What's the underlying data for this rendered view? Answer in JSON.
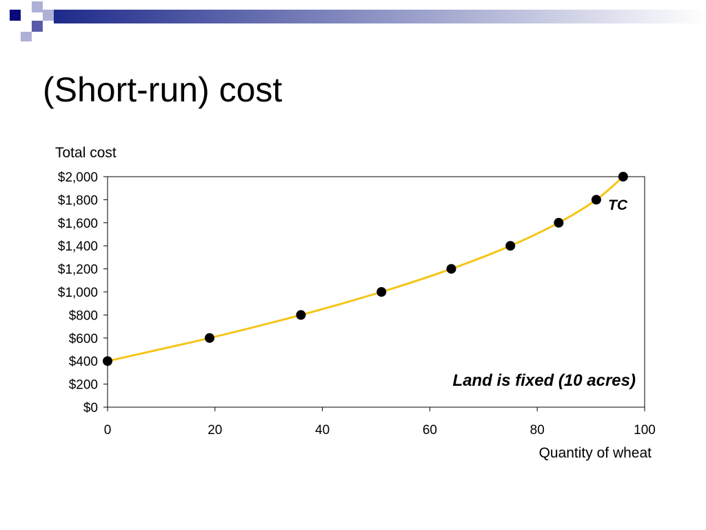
{
  "slide": {
    "title": "(Short-run) cost"
  },
  "colors": {
    "curve": "#f5c518",
    "header_square_dark": "#0a0a7a",
    "header_square_mid": "#5a5aa8",
    "header_square_light": "#aeb0d6",
    "header_bar_start": "#1e2a8a",
    "header_bar_end": "#ffffff"
  },
  "chart_data": {
    "type": "line",
    "ylabel": "Total cost",
    "xlabel": "Quantity of wheat",
    "xlim": [
      0,
      100
    ],
    "ylim": [
      0,
      2000
    ],
    "x_ticks": [
      "0",
      "20",
      "40",
      "60",
      "80",
      "100"
    ],
    "y_ticks": [
      "$0",
      "$200",
      "$400",
      "$600",
      "$800",
      "$1,000",
      "$1,200",
      "$1,400",
      "$1,600",
      "$1,800",
      "$2,000"
    ],
    "series": [
      {
        "name": "TC",
        "points": [
          {
            "x": 0,
            "y": 400
          },
          {
            "x": 19,
            "y": 600
          },
          {
            "x": 36,
            "y": 800
          },
          {
            "x": 51,
            "y": 1000
          },
          {
            "x": 64,
            "y": 1200
          },
          {
            "x": 75,
            "y": 1400
          },
          {
            "x": 84,
            "y": 1600
          },
          {
            "x": 91,
            "y": 1800
          },
          {
            "x": 96,
            "y": 2000
          }
        ]
      }
    ],
    "annotations": [
      "Land is fixed (10 acres)"
    ],
    "grid": false
  }
}
